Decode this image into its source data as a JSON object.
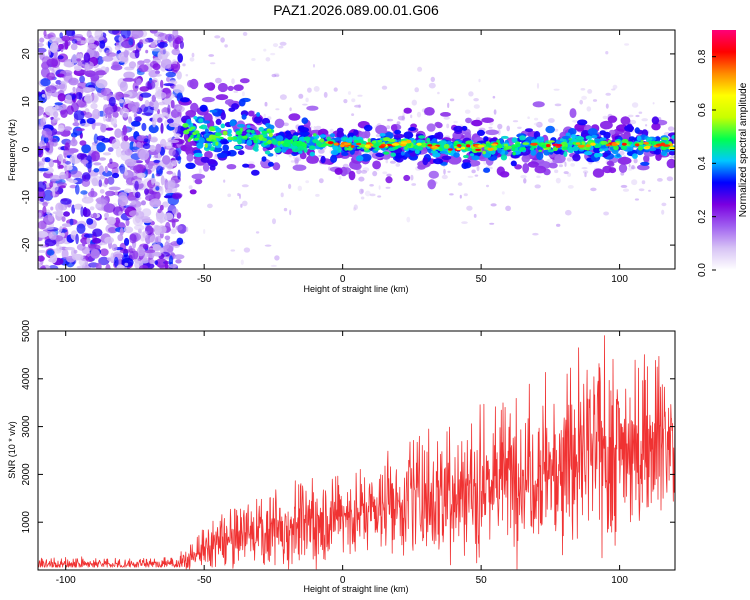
{
  "title": "PAZ1.2026.089.00.01.G06",
  "colors": {
    "snr_line": "#f03232",
    "axis": "#000000",
    "background": "#ffffff",
    "spectrogram_ramp": [
      "#ffffff",
      "#d7c3f5",
      "#a060f0",
      "#7a00e0",
      "#0000ff",
      "#00c8ff",
      "#00ff50",
      "#c8ff00",
      "#ffff00",
      "#ff8c00",
      "#ff0000",
      "#ff0078"
    ]
  },
  "chart_data": [
    {
      "type": "heatmap",
      "name": "spectrogram",
      "xlabel": "Height of straight line (km)",
      "ylabel": "Frequency (Hz)",
      "xlim": [
        -110,
        120
      ],
      "ylim": [
        -25,
        25
      ],
      "x_ticks": [
        -100,
        -50,
        0,
        50,
        100
      ],
      "y_ticks": [
        -20,
        -10,
        0,
        10,
        20
      ],
      "colorbar": {
        "label": "Normalized spectral amplitude",
        "range": [
          0.0,
          0.9
        ],
        "ticks": [
          "0.0",
          "0.2",
          "0.4",
          "0.6",
          "0.8"
        ]
      },
      "description_points": {
        "noise_region_x": [
          -110,
          -58
        ],
        "signal_center_freq_hz": [
          {
            "x": -57,
            "f": 4.5
          },
          {
            "x": -50,
            "f": 2.0
          },
          {
            "x": -40,
            "f": 3.5
          },
          {
            "x": -30,
            "f": 2.5
          },
          {
            "x": -20,
            "f": 1.0
          },
          {
            "x": -10,
            "f": 1.5
          },
          {
            "x": 0,
            "f": 1.0
          },
          {
            "x": 20,
            "f": 1.0
          },
          {
            "x": 40,
            "f": 0.5
          },
          {
            "x": 60,
            "f": 0.5
          },
          {
            "x": 80,
            "f": 1.0
          },
          {
            "x": 100,
            "f": 1.0
          },
          {
            "x": 120,
            "f": 1.0
          }
        ]
      }
    },
    {
      "type": "line",
      "name": "snr",
      "xlabel": "Height of straight line (km)",
      "ylabel": "SNR (10 * v/v)",
      "xlim": [
        -110,
        120
      ],
      "ylim": [
        0,
        5000
      ],
      "x_ticks": [
        -100,
        -50,
        0,
        50,
        100
      ],
      "y_ticks": [
        1000,
        2000,
        3000,
        4000,
        5000
      ],
      "envelope": {
        "x": [
          -110,
          -80,
          -60,
          -55,
          -50,
          -40,
          -30,
          -20,
          -10,
          0,
          10,
          20,
          30,
          40,
          50,
          60,
          70,
          80,
          90,
          97,
          100,
          110,
          120
        ],
        "mean": [
          120,
          120,
          130,
          250,
          450,
          650,
          800,
          900,
          1050,
          1150,
          1300,
          1450,
          1550,
          1700,
          1850,
          2000,
          2150,
          2300,
          2450,
          2550,
          2600,
          2700,
          2800
        ],
        "peak": [
          260,
          240,
          260,
          600,
          900,
          1300,
          1500,
          1900,
          2000,
          2100,
          2250,
          2600,
          2900,
          3300,
          3400,
          3600,
          4000,
          4200,
          4500,
          5000,
          4600,
          4500,
          4300
        ]
      }
    }
  ]
}
